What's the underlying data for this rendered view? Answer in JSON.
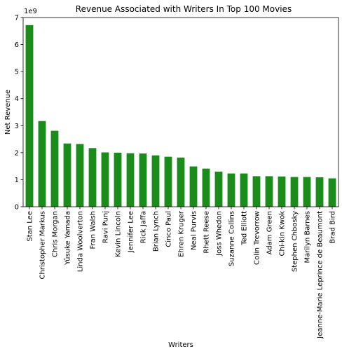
{
  "chart_data": {
    "type": "bar",
    "title": "Revenue Associated with Writers In Top 100 Movies",
    "xlabel": "Writers",
    "ylabel": "Net Revenue",
    "scale_label": "1e9",
    "ylim": [
      0,
      7
    ],
    "yticks": [
      "0",
      "1",
      "2",
      "3",
      "4",
      "5",
      "6",
      "7"
    ],
    "bar_color": "#1a8c1a",
    "grid": false,
    "categories": [
      "Stan Lee",
      "Christopher Markus",
      "Chris Morgan",
      "Yûsuke Yamada",
      "Linda Woolverton",
      "Fran Walsh",
      "Ravi Punj",
      "Kevin Lincoln",
      "Jennifer Lee",
      "Rick Jaffa",
      "Brian Lynch",
      "Cinco Paul",
      "Ehren Kruger",
      "Neal Purvis",
      "Rhett Reese",
      "Joss Whedon",
      "Suzanne Collins",
      "Ted Elliott",
      "Colin Trevorrow",
      "Adam Green",
      "Chi-kin Kwok",
      "Stephen Chbosky",
      "Marilyn Barnes",
      "Jeanne-Marie Leprince de Beaumont",
      "Brad Bird"
    ],
    "values": [
      6.72,
      3.17,
      2.81,
      2.34,
      2.32,
      2.17,
      2.01,
      2.0,
      1.98,
      1.97,
      1.9,
      1.85,
      1.82,
      1.49,
      1.41,
      1.3,
      1.23,
      1.23,
      1.13,
      1.13,
      1.12,
      1.1,
      1.1,
      1.09,
      1.05
    ]
  }
}
